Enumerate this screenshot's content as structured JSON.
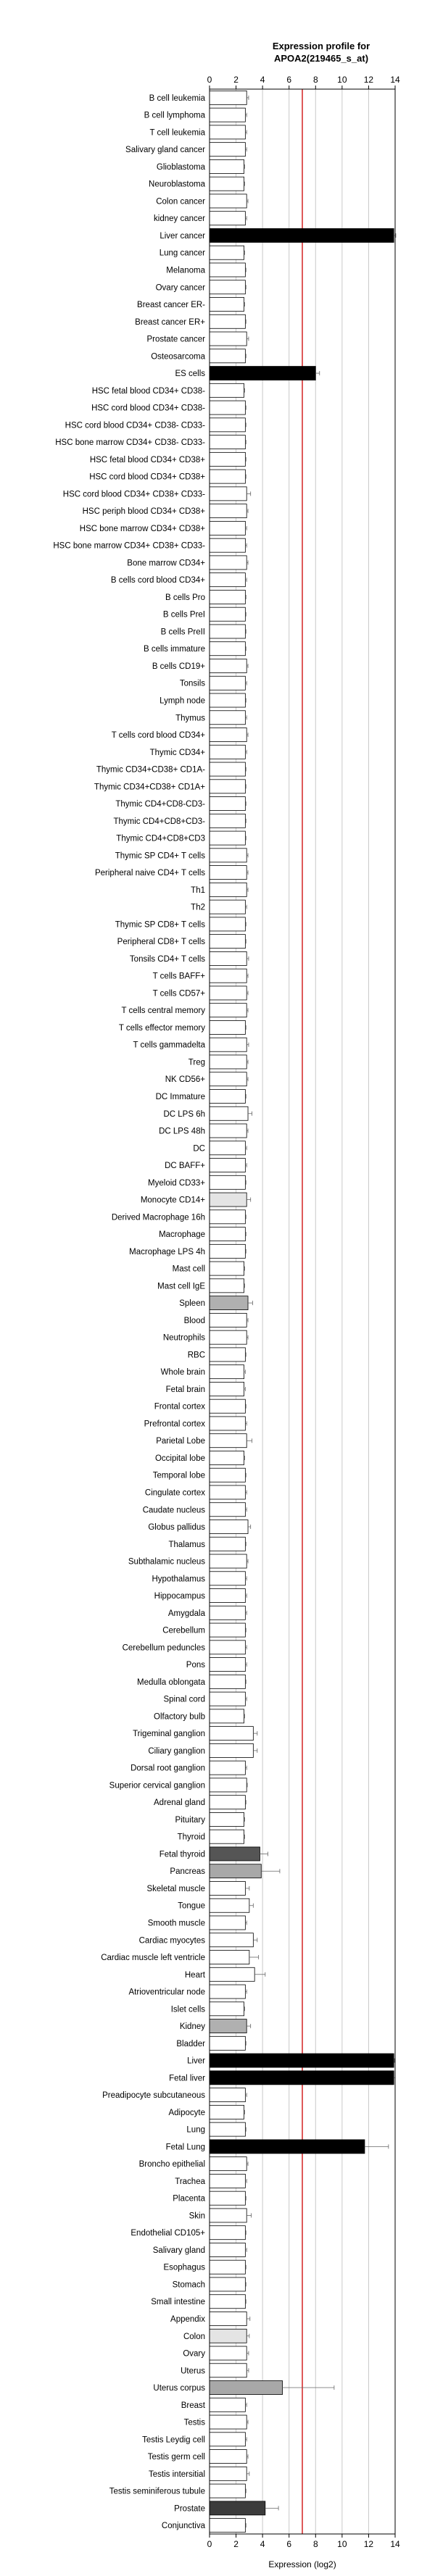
{
  "chart_data": {
    "type": "bar",
    "orientation": "horizontal",
    "title_lines": [
      "Expression profile for",
      "APOA2(219465_s_at)"
    ],
    "xlabel": "Expression (log2)",
    "ylabel": "",
    "xlim": [
      0,
      14
    ],
    "x_ticks": [
      0,
      2,
      4,
      6,
      8,
      10,
      12,
      14
    ],
    "x_tick_labels": [
      "0",
      "2",
      "4",
      "6",
      "8",
      "10",
      "12",
      "14"
    ],
    "grid": "vertical",
    "reference_line": {
      "value": 7,
      "color": "#cc0000"
    },
    "categories": [
      "B cell leukemia",
      "B cell lymphoma",
      "T cell leukemia",
      "Salivary gland cancer",
      "Glioblastoma",
      "Neuroblastoma",
      "Colon cancer",
      "kidney cancer",
      "Liver cancer",
      "Lung cancer",
      "Melanoma",
      "Ovary cancer",
      "Breast cancer ER-",
      "Breast cancer ER+",
      "Prostate cancer",
      "Osteosarcoma",
      "ES cells",
      "HSC fetal blood CD34+ CD38-",
      "HSC cord blood CD34+ CD38-",
      "HSC cord blood CD34+ CD38- CD33-",
      "HSC bone marrow CD34+ CD38- CD33-",
      "HSC fetal blood CD34+ CD38+",
      "HSC cord blood CD34+ CD38+",
      "HSC cord blood CD34+ CD38+ CD33-",
      "HSC periph blood CD34+ CD38+",
      "HSC bone marrow CD34+ CD38+",
      "HSC bone marrow CD34+ CD38+ CD33-",
      "Bone marrow CD34+",
      "B cells cord blood CD34+",
      "B cells Pro",
      "B cells PreI",
      "B cells PreII",
      "B cells immature",
      "B cells CD19+",
      "Tonsils",
      "Lymph node",
      "Thymus",
      "T cells cord blood CD34+",
      "Thymic CD34+",
      "Thymic CD34+CD38+ CD1A-",
      "Thymic CD34+CD38+ CD1A+",
      "Thymic CD4+CD8-CD3-",
      "Thymic CD4+CD8+CD3-",
      "Thymic CD4+CD8+CD3",
      "Thymic SP CD4+ T cells",
      "Peripheral naive CD4+ T cells",
      "Th1",
      "Th2",
      "Thymic SP CD8+ T cells",
      "Peripheral CD8+ T cells",
      "Tonsils CD4+ T cells",
      "T cells BAFF+",
      "T cells CD57+",
      "T cells central memory",
      "T cells effector memory",
      "T cells gammadelta",
      "Treg",
      "NK CD56+",
      "DC Immature",
      "DC LPS 6h",
      "DC LPS 48h",
      "DC",
      "DC BAFF+",
      "Myeloid CD33+",
      "Monocyte CD14+",
      "Derived Macrophage 16h",
      "Macrophage",
      "Macrophage LPS 4h",
      "Mast cell",
      "Mast cell IgE",
      "Spleen",
      "Blood",
      "Neutrophils",
      "RBC",
      "Whole brain",
      "Fetal brain",
      "Frontal cortex",
      "Prefrontal cortex",
      "Parietal Lobe",
      "Occipital lobe",
      "Temporal lobe",
      "Cingulate cortex",
      "Caudate nucleus",
      "Globus pallidus",
      "Thalamus",
      "Subthalamic nucleus",
      "Hypothalamus",
      "Hippocampus",
      "Amygdala",
      "Cerebellum",
      "Cerebellum peduncles",
      "Pons",
      "Medulla oblongata",
      "Spinal cord",
      "Olfactory bulb",
      "Trigeminal ganglion",
      "Ciliary ganglion",
      "Dorsal root ganglion",
      "Superior cervical ganglion",
      "Adrenal gland",
      "Pituitary",
      "Thyroid",
      "Fetal thyroid",
      "Pancreas",
      "Skeletal muscle",
      "Tongue",
      "Smooth muscle",
      "Cardiac myocytes",
      "Cardiac muscle left ventricle",
      "Heart",
      "Atrioventricular node",
      "Islet cells",
      "Kidney",
      "Bladder",
      "Liver",
      "Fetal liver",
      "Preadipocyte subcutaneous",
      "Adipocyte",
      "Lung",
      "Fetal Lung",
      "Broncho epithelial",
      "Trachea",
      "Placenta",
      "Skin",
      "Endothelial CD105+",
      "Salivary gland",
      "Esophagus",
      "Stomach",
      "Small intestine",
      "Appendix",
      "Colon",
      "Ovary",
      "Uterus",
      "Uterus corpus",
      "Breast",
      "Testis",
      "Testis Leydig cell",
      "Testis germ cell",
      "Testis intersitial",
      "Testis seminiferous tubule",
      "Prostate",
      "Conjunctiva"
    ],
    "values": [
      2.8,
      2.7,
      2.7,
      2.7,
      2.6,
      2.6,
      2.8,
      2.7,
      13.9,
      2.6,
      2.7,
      2.7,
      2.6,
      2.7,
      2.8,
      2.7,
      8.0,
      2.6,
      2.7,
      2.7,
      2.7,
      2.7,
      2.7,
      2.8,
      2.8,
      2.7,
      2.7,
      2.8,
      2.7,
      2.7,
      2.7,
      2.7,
      2.7,
      2.8,
      2.7,
      2.7,
      2.7,
      2.8,
      2.7,
      2.7,
      2.7,
      2.7,
      2.7,
      2.7,
      2.8,
      2.8,
      2.8,
      2.7,
      2.7,
      2.7,
      2.8,
      2.8,
      2.8,
      2.8,
      2.7,
      2.8,
      2.8,
      2.8,
      2.7,
      2.9,
      2.8,
      2.7,
      2.7,
      2.7,
      2.8,
      2.7,
      2.7,
      2.7,
      2.6,
      2.6,
      2.9,
      2.8,
      2.8,
      2.7,
      2.6,
      2.6,
      2.7,
      2.7,
      2.8,
      2.6,
      2.7,
      2.7,
      2.7,
      2.9,
      2.7,
      2.8,
      2.7,
      2.7,
      2.7,
      2.7,
      2.7,
      2.7,
      2.7,
      2.7,
      2.6,
      3.3,
      3.3,
      2.7,
      2.8,
      2.7,
      2.6,
      2.6,
      3.8,
      3.9,
      2.7,
      3.0,
      2.7,
      3.3,
      3.0,
      3.4,
      2.7,
      2.6,
      2.8,
      2.7,
      13.9,
      13.9,
      2.7,
      2.6,
      2.7,
      11.7,
      2.8,
      2.7,
      2.7,
      2.8,
      2.7,
      2.7,
      2.7,
      2.7,
      2.7,
      2.8,
      2.8,
      2.8,
      2.8,
      5.5,
      2.7,
      2.8,
      2.7,
      2.8,
      2.8,
      2.7,
      4.2,
      2.7
    ],
    "errors": [
      0.15,
      0.1,
      0.1,
      0.1,
      0.05,
      0.05,
      0.1,
      0.1,
      0.15,
      0.05,
      0.05,
      0.05,
      0.05,
      0.05,
      0.15,
      0.05,
      0.3,
      0.05,
      0.05,
      0.05,
      0.05,
      0.05,
      0.05,
      0.3,
      0.1,
      0.1,
      0.1,
      0.1,
      0.1,
      0.05,
      0.05,
      0.05,
      0.05,
      0.1,
      0.1,
      0.05,
      0.1,
      0.1,
      0.1,
      0.05,
      0.05,
      0.05,
      0.05,
      0.05,
      0.1,
      0.1,
      0.1,
      0.1,
      0.05,
      0.05,
      0.15,
      0.1,
      0.1,
      0.1,
      0.05,
      0.15,
      0.1,
      0.1,
      0.05,
      0.3,
      0.1,
      0.1,
      0.1,
      0.05,
      0.3,
      0.05,
      0.05,
      0.05,
      0.05,
      0.05,
      0.35,
      0.1,
      0.1,
      0.05,
      0.1,
      0.1,
      0.05,
      0.1,
      0.4,
      0.05,
      0.05,
      0.1,
      0.1,
      0.2,
      0.05,
      0.1,
      0.1,
      0.1,
      0.1,
      0.05,
      0.1,
      0.1,
      0.05,
      0.1,
      0.05,
      0.3,
      0.3,
      0.1,
      0.05,
      0.05,
      0.05,
      0.05,
      0.6,
      1.4,
      0.3,
      0.3,
      0.1,
      0.3,
      0.7,
      0.8,
      0.1,
      0.05,
      0.3,
      0.05,
      0.05,
      0.1,
      0.1,
      0.05,
      0.05,
      1.8,
      0.1,
      0.1,
      0.05,
      0.35,
      0.05,
      0.1,
      0.05,
      0.05,
      0.05,
      0.25,
      0.2,
      0.15,
      0.15,
      3.9,
      0.1,
      0.1,
      0.1,
      0.1,
      0.2,
      0.05,
      1.0,
      0.05
    ],
    "colors": [
      "#ffffff",
      "#ffffff",
      "#ffffff",
      "#ffffff",
      "#ffffff",
      "#ffffff",
      "#ffffff",
      "#ffffff",
      "#000000",
      "#ffffff",
      "#ffffff",
      "#ffffff",
      "#ffffff",
      "#ffffff",
      "#ffffff",
      "#ffffff",
      "#000000",
      "#ffffff",
      "#ffffff",
      "#ffffff",
      "#ffffff",
      "#ffffff",
      "#ffffff",
      "#ffffff",
      "#ffffff",
      "#ffffff",
      "#ffffff",
      "#ffffff",
      "#ffffff",
      "#ffffff",
      "#ffffff",
      "#ffffff",
      "#ffffff",
      "#ffffff",
      "#ffffff",
      "#ffffff",
      "#ffffff",
      "#ffffff",
      "#ffffff",
      "#ffffff",
      "#ffffff",
      "#ffffff",
      "#ffffff",
      "#ffffff",
      "#ffffff",
      "#ffffff",
      "#ffffff",
      "#ffffff",
      "#ffffff",
      "#ffffff",
      "#ffffff",
      "#ffffff",
      "#ffffff",
      "#ffffff",
      "#ffffff",
      "#ffffff",
      "#ffffff",
      "#ffffff",
      "#ffffff",
      "#ffffff",
      "#ffffff",
      "#ffffff",
      "#ffffff",
      "#ffffff",
      "#e4e4e4",
      "#ffffff",
      "#ffffff",
      "#ffffff",
      "#ffffff",
      "#ffffff",
      "#b0b0b0",
      "#ffffff",
      "#ffffff",
      "#ffffff",
      "#ffffff",
      "#ffffff",
      "#ffffff",
      "#ffffff",
      "#ffffff",
      "#ffffff",
      "#ffffff",
      "#ffffff",
      "#ffffff",
      "#ffffff",
      "#ffffff",
      "#ffffff",
      "#ffffff",
      "#ffffff",
      "#ffffff",
      "#ffffff",
      "#ffffff",
      "#ffffff",
      "#ffffff",
      "#ffffff",
      "#ffffff",
      "#ffffff",
      "#ffffff",
      "#ffffff",
      "#ffffff",
      "#ffffff",
      "#ffffff",
      "#ffffff",
      "#555555",
      "#a8a8a8",
      "#ffffff",
      "#ffffff",
      "#ffffff",
      "#ffffff",
      "#ffffff",
      "#ffffff",
      "#ffffff",
      "#ffffff",
      "#b0b0b0",
      "#ffffff",
      "#000000",
      "#000000",
      "#ffffff",
      "#ffffff",
      "#ffffff",
      "#000000",
      "#ffffff",
      "#ffffff",
      "#ffffff",
      "#ffffff",
      "#ffffff",
      "#ffffff",
      "#ffffff",
      "#ffffff",
      "#ffffff",
      "#ffffff",
      "#e4e4e4",
      "#ffffff",
      "#ffffff",
      "#a8a8a8",
      "#ffffff",
      "#ffffff",
      "#ffffff",
      "#ffffff",
      "#ffffff",
      "#ffffff",
      "#3c3c3c",
      "#ffffff"
    ]
  }
}
